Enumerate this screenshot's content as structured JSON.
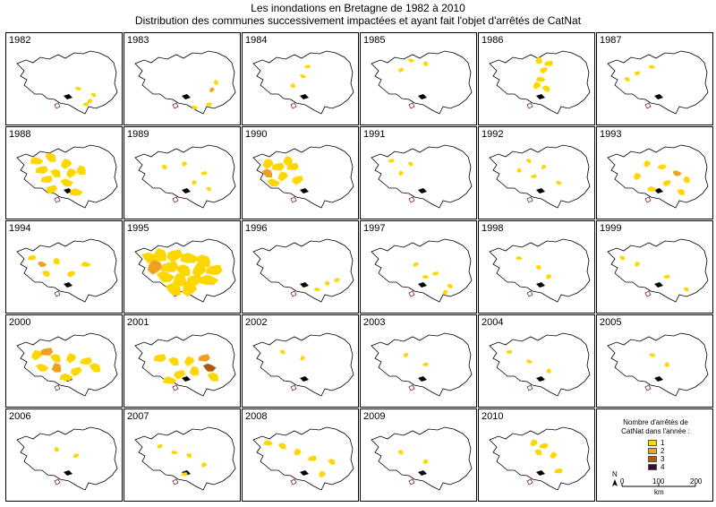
{
  "title_line1": "Les inondations en Bretagne de 1982 à 2010",
  "title_line2": "Distribution des communes successivement impactées et ayant fait l'objet d'arrêtés de CatNat",
  "colors": {
    "1": "#ffd700",
    "2": "#f0a020",
    "3": "#b05a10",
    "4": "#3a0a30"
  },
  "years": [
    {
      "year": "1982",
      "intensity": "low",
      "spots": [
        [
          0.78,
          0.7,
          1
        ],
        [
          0.74,
          0.8,
          1
        ],
        [
          0.7,
          0.85,
          1
        ],
        [
          0.62,
          0.6,
          1
        ]
      ]
    },
    {
      "year": "1983",
      "intensity": "low",
      "spots": [
        [
          0.78,
          0.62,
          2
        ],
        [
          0.75,
          0.85,
          1
        ],
        [
          0.6,
          0.9,
          1
        ],
        [
          0.82,
          0.5,
          1
        ]
      ]
    },
    {
      "year": "1984",
      "intensity": "low",
      "spots": [
        [
          0.55,
          0.25,
          1
        ],
        [
          0.5,
          0.4,
          1
        ],
        [
          0.4,
          0.55,
          1
        ]
      ]
    },
    {
      "year": "1985",
      "intensity": "low",
      "spots": [
        [
          0.4,
          0.15,
          1
        ],
        [
          0.55,
          0.2,
          1
        ],
        [
          0.3,
          0.3,
          1
        ]
      ]
    },
    {
      "year": "1986",
      "intensity": "medium",
      "spots": [
        [
          0.5,
          0.15,
          1
        ],
        [
          0.55,
          0.3,
          1
        ],
        [
          0.52,
          0.45,
          1
        ],
        [
          0.58,
          0.6,
          1
        ],
        [
          0.48,
          0.55,
          1
        ],
        [
          0.6,
          0.2,
          1
        ]
      ]
    },
    {
      "year": "1987",
      "intensity": "low",
      "spots": [
        [
          0.3,
          0.35,
          1
        ],
        [
          0.45,
          0.25,
          1
        ],
        [
          0.2,
          0.45,
          1
        ]
      ]
    },
    {
      "year": "1988",
      "intensity": "high",
      "spots": [
        [
          0.2,
          0.25,
          1
        ],
        [
          0.35,
          0.2,
          1
        ],
        [
          0.5,
          0.3,
          1
        ],
        [
          0.25,
          0.4,
          1
        ],
        [
          0.4,
          0.45,
          1
        ],
        [
          0.55,
          0.45,
          1
        ],
        [
          0.3,
          0.55,
          1
        ],
        [
          0.5,
          0.6,
          1
        ],
        [
          0.65,
          0.4,
          1
        ],
        [
          0.35,
          0.7,
          1
        ],
        [
          0.6,
          0.75,
          1
        ]
      ]
    },
    {
      "year": "1989",
      "intensity": "low",
      "spots": [
        [
          0.3,
          0.35,
          1
        ],
        [
          0.5,
          0.3,
          1
        ],
        [
          0.7,
          0.45,
          1
        ],
        [
          0.75,
          0.7,
          1
        ],
        [
          0.6,
          0.6,
          1
        ]
      ]
    },
    {
      "year": "1990",
      "intensity": "high",
      "spots": [
        [
          0.15,
          0.3,
          1
        ],
        [
          0.25,
          0.35,
          1
        ],
        [
          0.15,
          0.45,
          2
        ],
        [
          0.3,
          0.5,
          1
        ],
        [
          0.4,
          0.35,
          1
        ],
        [
          0.2,
          0.6,
          1
        ],
        [
          0.35,
          0.25,
          1
        ],
        [
          0.45,
          0.55,
          1
        ]
      ]
    },
    {
      "year": "1991",
      "intensity": "low",
      "spots": [
        [
          0.2,
          0.25,
          1
        ],
        [
          0.4,
          0.3,
          1
        ],
        [
          0.3,
          0.45,
          1
        ]
      ]
    },
    {
      "year": "1992",
      "intensity": "low",
      "spots": [
        [
          0.4,
          0.25,
          1
        ],
        [
          0.55,
          0.35,
          1
        ],
        [
          0.45,
          0.5,
          1
        ],
        [
          0.7,
          0.6,
          1
        ],
        [
          0.3,
          0.4,
          1
        ]
      ]
    },
    {
      "year": "1993",
      "intensity": "medium",
      "spots": [
        [
          0.4,
          0.3,
          1
        ],
        [
          0.55,
          0.35,
          1
        ],
        [
          0.7,
          0.45,
          2
        ],
        [
          0.8,
          0.55,
          1
        ],
        [
          0.6,
          0.6,
          1
        ],
        [
          0.45,
          0.7,
          1
        ],
        [
          0.75,
          0.75,
          1
        ],
        [
          0.3,
          0.5,
          1
        ]
      ]
    },
    {
      "year": "1994",
      "intensity": "medium",
      "spots": [
        [
          0.15,
          0.3,
          1
        ],
        [
          0.25,
          0.4,
          2
        ],
        [
          0.4,
          0.35,
          1
        ],
        [
          0.55,
          0.55,
          1
        ],
        [
          0.7,
          0.4,
          1
        ],
        [
          0.3,
          0.55,
          1
        ]
      ]
    },
    {
      "year": "1995",
      "intensity": "very-high",
      "spots": [
        [
          0.15,
          0.3,
          1
        ],
        [
          0.25,
          0.25,
          1
        ],
        [
          0.4,
          0.25,
          1
        ],
        [
          0.55,
          0.3,
          1
        ],
        [
          0.7,
          0.35,
          1
        ],
        [
          0.2,
          0.45,
          2
        ],
        [
          0.35,
          0.45,
          1
        ],
        [
          0.5,
          0.5,
          1
        ],
        [
          0.65,
          0.5,
          1
        ],
        [
          0.8,
          0.5,
          1
        ],
        [
          0.3,
          0.6,
          1
        ],
        [
          0.45,
          0.65,
          1
        ],
        [
          0.6,
          0.65,
          1
        ],
        [
          0.75,
          0.65,
          1
        ],
        [
          0.4,
          0.8,
          1
        ],
        [
          0.55,
          0.8,
          1
        ]
      ]
    },
    {
      "year": "1996",
      "intensity": "low",
      "spots": [
        [
          0.75,
          0.7,
          1
        ],
        [
          0.85,
          0.65,
          1
        ],
        [
          0.65,
          0.8,
          1
        ]
      ]
    },
    {
      "year": "1997",
      "intensity": "low",
      "spots": [
        [
          0.45,
          0.4,
          1
        ],
        [
          0.55,
          0.6,
          1
        ],
        [
          0.8,
          0.75,
          1
        ],
        [
          0.75,
          0.85,
          1
        ],
        [
          0.65,
          0.55,
          1
        ]
      ]
    },
    {
      "year": "1998",
      "intensity": "low",
      "spots": [
        [
          0.3,
          0.3,
          1
        ],
        [
          0.5,
          0.45,
          1
        ],
        [
          0.6,
          0.6,
          1
        ]
      ]
    },
    {
      "year": "1999",
      "intensity": "low",
      "spots": [
        [
          0.15,
          0.3,
          1
        ],
        [
          0.3,
          0.4,
          1
        ],
        [
          0.6,
          0.6,
          1
        ],
        [
          0.8,
          0.8,
          1
        ]
      ]
    },
    {
      "year": "2000",
      "intensity": "high",
      "spots": [
        [
          0.2,
          0.35,
          1
        ],
        [
          0.3,
          0.3,
          2
        ],
        [
          0.4,
          0.4,
          1
        ],
        [
          0.55,
          0.4,
          1
        ],
        [
          0.7,
          0.45,
          1
        ],
        [
          0.25,
          0.55,
          1
        ],
        [
          0.4,
          0.55,
          2
        ],
        [
          0.6,
          0.6,
          1
        ],
        [
          0.5,
          0.7,
          1
        ],
        [
          0.8,
          0.55,
          1
        ]
      ]
    },
    {
      "year": "2001",
      "intensity": "high",
      "spots": [
        [
          0.25,
          0.4,
          1
        ],
        [
          0.4,
          0.45,
          1
        ],
        [
          0.55,
          0.45,
          1
        ],
        [
          0.7,
          0.4,
          2
        ],
        [
          0.75,
          0.55,
          3
        ],
        [
          0.6,
          0.6,
          1
        ],
        [
          0.45,
          0.65,
          1
        ],
        [
          0.35,
          0.75,
          1
        ],
        [
          0.8,
          0.7,
          1
        ]
      ]
    },
    {
      "year": "2002",
      "intensity": "low",
      "spots": [
        [
          0.3,
          0.3,
          1
        ],
        [
          0.5,
          0.4,
          1
        ]
      ]
    },
    {
      "year": "2003",
      "intensity": "low",
      "spots": [
        [
          0.35,
          0.35,
          1
        ],
        [
          0.55,
          0.5,
          1
        ]
      ]
    },
    {
      "year": "2004",
      "intensity": "low",
      "spots": [
        [
          0.2,
          0.3,
          1
        ],
        [
          0.4,
          0.45,
          1
        ],
        [
          0.6,
          0.6,
          1
        ]
      ]
    },
    {
      "year": "2005",
      "intensity": "low",
      "spots": [
        [
          0.45,
          0.35,
          1
        ],
        [
          0.6,
          0.5,
          1
        ]
      ]
    },
    {
      "year": "2006",
      "intensity": "low",
      "spots": [
        [
          0.4,
          0.35,
          1
        ],
        [
          0.6,
          0.45,
          1
        ]
      ]
    },
    {
      "year": "2007",
      "intensity": "low",
      "spots": [
        [
          0.25,
          0.3,
          1
        ],
        [
          0.4,
          0.4,
          1
        ],
        [
          0.55,
          0.45,
          1
        ],
        [
          0.7,
          0.6,
          1
        ],
        [
          0.5,
          0.75,
          1
        ]
      ]
    },
    {
      "year": "2008",
      "intensity": "medium",
      "spots": [
        [
          0.15,
          0.25,
          1
        ],
        [
          0.3,
          0.3,
          1
        ],
        [
          0.45,
          0.4,
          1
        ],
        [
          0.6,
          0.5,
          1
        ],
        [
          0.8,
          0.55,
          1
        ],
        [
          0.7,
          0.75,
          1
        ]
      ]
    },
    {
      "year": "2009",
      "intensity": "low",
      "spots": [
        [
          0.3,
          0.4,
          1
        ],
        [
          0.55,
          0.55,
          1
        ]
      ]
    },
    {
      "year": "2010",
      "intensity": "medium",
      "spots": [
        [
          0.45,
          0.25,
          1
        ],
        [
          0.55,
          0.3,
          1
        ],
        [
          0.5,
          0.4,
          1
        ],
        [
          0.65,
          0.45,
          1
        ],
        [
          0.7,
          0.7,
          1
        ]
      ]
    }
  ],
  "legend": {
    "title_line1": "Nombre d'arrêtés de",
    "title_line2": "CatNat dans l'année :",
    "items": [
      {
        "label": "1",
        "color": "#ffd700"
      },
      {
        "label": "2",
        "color": "#f0a020"
      },
      {
        "label": "3",
        "color": "#b05a10"
      },
      {
        "label": "4",
        "color": "#3a0a30"
      }
    ],
    "scale_0": "0",
    "scale_100": "100",
    "scale_200": "200",
    "scale_unit": "km",
    "north": "N"
  }
}
